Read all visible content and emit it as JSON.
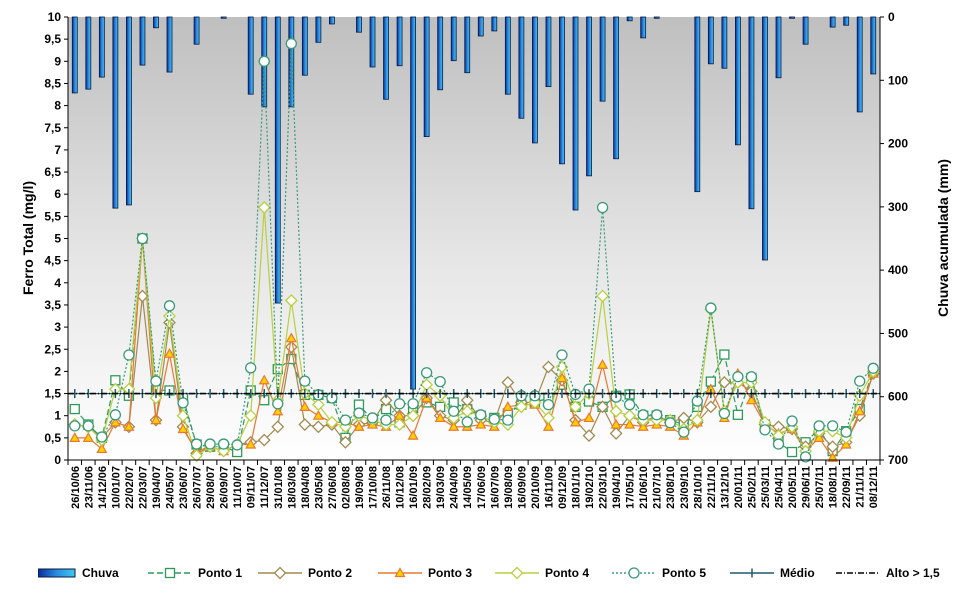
{
  "chart_data": {
    "type": "bar+line",
    "title": "",
    "ylabel": "Ferro Total (mg/l)",
    "y2label": "Chuva acumulada (mm)",
    "ylim": [
      0,
      10
    ],
    "y2lim": [
      0,
      700
    ],
    "y2_inverted": true,
    "yticks": [
      "0",
      "0,5",
      "1",
      "1,5",
      "2",
      "2,5",
      "3",
      "3,5",
      "4",
      "4,5",
      "5",
      "5,5",
      "6",
      "6,5",
      "7",
      "7,5",
      "8",
      "8,5",
      "9",
      "9,5",
      "10"
    ],
    "y2ticks": [
      "0",
      "100",
      "200",
      "300",
      "400",
      "500",
      "600",
      "700"
    ],
    "categories": [
      "26/10/06",
      "23/11/06",
      "14/12/06",
      "10/01/07",
      "22/02/07",
      "22/03/07",
      "19/04/07",
      "24/05/07",
      "23/06/07",
      "26/07/07",
      "29/08/07",
      "26/09/07",
      "11/10/07",
      "09/11/07",
      "11/12/07",
      "31/01/08",
      "18/03/08",
      "18/04/08",
      "23/05/08",
      "27/06/08",
      "02/08/08",
      "19/09/08",
      "17/10/08",
      "26/11/08",
      "10/12/08",
      "16/01/09",
      "28/02/09",
      "19/03/09",
      "24/04/09",
      "14/05/09",
      "17/06/09",
      "16/07/09",
      "19/08/09",
      "16/09/09",
      "20/10/09",
      "16/11/09",
      "09/12/09",
      "18/01/10",
      "19/02/10",
      "22/03/10",
      "19/04/10",
      "17/05/10",
      "21/06/10",
      "21/07/10",
      "23/08/10",
      "23/09/10",
      "28/10/10",
      "22/11/10",
      "13/12/10",
      "20/01/11",
      "25/02/11",
      "25/03/11",
      "25/04/11",
      "20/05/11",
      "29/06/11",
      "25/07/11",
      "18/08/11",
      "22/09/11",
      "21/11/11",
      "08/12/11"
    ],
    "series": [
      {
        "name": "Chuva",
        "axis": "right",
        "kind": "bar",
        "color": "#1e6fd0",
        "values": [
          120,
          114,
          95,
          302,
          297,
          76,
          17,
          87,
          0,
          43,
          0,
          2,
          0,
          122,
          142,
          452,
          142,
          92,
          40,
          11,
          0,
          24,
          79,
          130,
          77,
          588,
          189,
          115,
          69,
          88,
          30,
          22,
          122,
          160,
          199,
          110,
          232,
          305,
          251,
          133,
          224,
          6,
          33,
          2,
          0,
          0,
          276,
          74,
          81,
          202,
          303,
          384,
          96,
          2,
          43,
          0,
          16,
          13,
          150,
          90
        ]
      },
      {
        "name": "Ponto 1",
        "kind": "line",
        "color": "#2e9a5a",
        "marker": "square",
        "dash": "6,3",
        "values": [
          1.15,
          0.8,
          0.5,
          1.8,
          1.45,
          5.0,
          1.58,
          1.57,
          1.4,
          0.35,
          0.3,
          0.3,
          0.18,
          1.57,
          1.35,
          2.05,
          2.28,
          1.47,
          1.47,
          1.4,
          0.5,
          1.25,
          0.9,
          1.15,
          0.85,
          1.17,
          1.3,
          1.2,
          1.3,
          1.15,
          1.0,
          0.95,
          1.05,
          1.25,
          1.3,
          1.4,
          1.7,
          1.2,
          1.32,
          1.2,
          1.45,
          1.48,
          1.0,
          1.0,
          0.9,
          0.8,
          1.2,
          1.77,
          2.38,
          1.02,
          1.85,
          0.8,
          0.4,
          0.18,
          0.4,
          0.7,
          0.2,
          0.65,
          1.15,
          2.0
        ]
      },
      {
        "name": "Ponto 2",
        "kind": "line",
        "color": "#a08a50",
        "marker": "diamond",
        "dash": "",
        "values": [
          0.8,
          0.75,
          0.5,
          0.85,
          0.75,
          3.7,
          0.9,
          3.1,
          0.75,
          0.15,
          0.3,
          0.2,
          0.35,
          0.4,
          0.45,
          0.75,
          2.55,
          0.8,
          0.75,
          0.8,
          0.4,
          0.8,
          0.85,
          1.35,
          1.0,
          1.0,
          1.4,
          1.0,
          0.9,
          1.35,
          0.9,
          0.85,
          1.75,
          1.3,
          1.3,
          2.1,
          1.8,
          0.9,
          0.55,
          1.2,
          0.6,
          1.0,
          0.85,
          1.0,
          0.85,
          0.95,
          0.85,
          1.2,
          1.75,
          1.75,
          1.55,
          0.8,
          0.75,
          0.7,
          0.3,
          0.6,
          0.3,
          0.4,
          1.0,
          1.95
        ]
      },
      {
        "name": "Ponto 3",
        "kind": "line",
        "color": "#e87830",
        "marker": "triangle",
        "dash": "",
        "values": [
          0.5,
          0.5,
          0.25,
          0.85,
          0.75,
          5.0,
          0.9,
          2.4,
          0.7,
          0.2,
          0.3,
          0.2,
          0.35,
          0.35,
          1.8,
          1.1,
          2.75,
          1.2,
          1.0,
          0.85,
          0.85,
          0.75,
          0.8,
          0.75,
          1.0,
          0.55,
          1.4,
          0.95,
          0.75,
          0.75,
          0.8,
          0.75,
          1.2,
          1.25,
          1.25,
          0.75,
          1.85,
          0.85,
          0.95,
          2.15,
          0.8,
          0.8,
          0.75,
          0.8,
          0.75,
          0.55,
          0.85,
          1.6,
          0.95,
          1.95,
          1.35,
          0.8,
          0.6,
          0.7,
          0.2,
          0.5,
          0.05,
          0.35,
          1.1,
          1.95
        ]
      },
      {
        "name": "Ponto 4",
        "kind": "line",
        "color": "#b8d040",
        "marker": "diamond",
        "dash": "",
        "values": [
          0.8,
          0.75,
          0.45,
          1.6,
          1.6,
          5.0,
          1.4,
          3.25,
          1.0,
          0.1,
          0.3,
          0.2,
          0.35,
          1.0,
          5.7,
          1.35,
          3.6,
          1.5,
          1.25,
          0.85,
          0.75,
          1.0,
          0.9,
          0.8,
          0.8,
          1.0,
          1.7,
          1.45,
          0.95,
          1.1,
          1.0,
          0.85,
          0.8,
          1.2,
          1.3,
          0.95,
          2.1,
          1.2,
          1.5,
          3.7,
          1.1,
          1.0,
          0.9,
          0.9,
          0.9,
          0.7,
          0.9,
          3.4,
          1.1,
          1.75,
          1.75,
          0.85,
          0.55,
          0.75,
          0.2,
          0.65,
          0.65,
          0.5,
          1.45,
          2.0
        ]
      },
      {
        "name": "Ponto 5",
        "kind": "line",
        "color": "#3a9a78",
        "marker": "circle",
        "dash": "2,2",
        "values": [
          0.77,
          0.77,
          0.52,
          1.02,
          2.37,
          5.0,
          1.78,
          3.48,
          1.29,
          0.36,
          0.36,
          0.36,
          0.34,
          2.08,
          9.0,
          1.27,
          9.4,
          1.78,
          1.47,
          1.4,
          0.9,
          1.06,
          0.95,
          0.9,
          1.27,
          1.27,
          1.97,
          1.77,
          1.1,
          0.86,
          1.02,
          0.92,
          0.9,
          1.45,
          1.45,
          1.25,
          2.37,
          1.48,
          1.6,
          5.7,
          1.42,
          1.25,
          1.02,
          1.02,
          0.84,
          0.63,
          1.33,
          3.43,
          1.05,
          1.88,
          1.88,
          0.68,
          0.36,
          0.88,
          0.07,
          0.77,
          0.77,
          0.63,
          1.78,
          2.07
        ]
      },
      {
        "name": "Médio",
        "kind": "line",
        "color": "#1e5a6a",
        "marker": "plus",
        "dash": "",
        "constant": 1.5
      },
      {
        "name": "Alto > 1,5",
        "kind": "line",
        "color": "#000000",
        "marker": "none",
        "dash": "6,2,1,2",
        "constant": 1.5
      }
    ],
    "legend_position": "bottom",
    "grid": false
  }
}
